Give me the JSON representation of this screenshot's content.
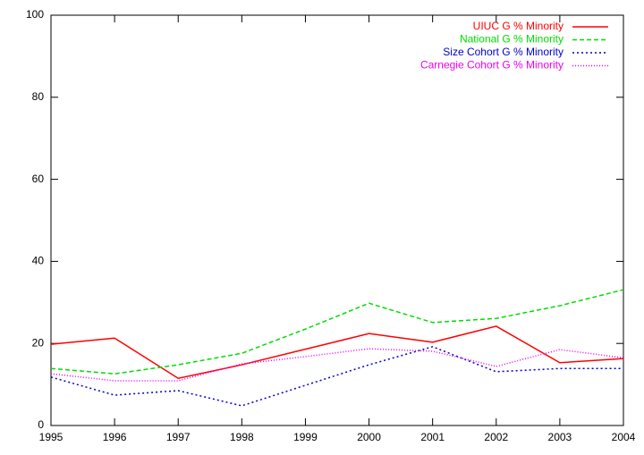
{
  "chart_data": {
    "type": "line",
    "x": [
      1995,
      1996,
      1997,
      1998,
      1999,
      2000,
      2001,
      2002,
      2003,
      2004
    ],
    "series": [
      {
        "name": "UIUC G % Minority",
        "color": "#ff0000",
        "dash": "none",
        "values": [
          19.8,
          21.3,
          11.5,
          14.8,
          18.6,
          22.4,
          20.3,
          24.2,
          15.3,
          16.3
        ]
      },
      {
        "name": "National G % Minority",
        "color": "#00dd00",
        "dash": "5,3",
        "values": [
          13.9,
          12.6,
          14.8,
          17.6,
          23.5,
          29.8,
          25.1,
          26.1,
          29.2,
          33.1
        ]
      },
      {
        "name": "Size Cohort G % Minority",
        "color": "#0000cc",
        "dash": "2,3",
        "values": [
          11.8,
          7.4,
          8.5,
          4.8,
          9.8,
          14.8,
          19.2,
          13.1,
          13.9,
          13.9
        ]
      },
      {
        "name": "Carnegie Cohort G % Minority",
        "color": "#ee00ee",
        "dash": "1,2",
        "values": [
          12.6,
          10.9,
          10.9,
          15.0,
          16.8,
          18.7,
          18.1,
          14.4,
          18.5,
          16.5
        ]
      }
    ],
    "xlim": [
      1995,
      2004
    ],
    "xticks": [
      1995,
      1996,
      1997,
      1998,
      1999,
      2000,
      2001,
      2002,
      2003,
      2004
    ],
    "ylim": [
      0,
      100
    ],
    "yticks": [
      0,
      20,
      40,
      60,
      80,
      100
    ],
    "legend": "top-right",
    "grid": false
  }
}
